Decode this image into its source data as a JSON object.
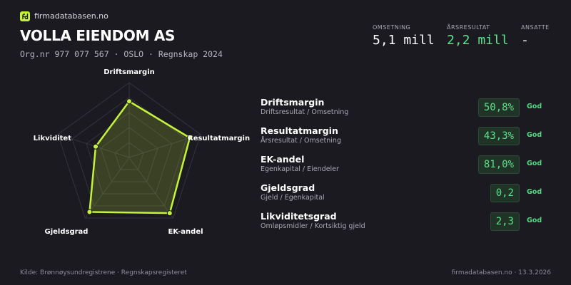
{
  "header": {
    "site": "firmadatabasen.no",
    "company": "VOLLA EIENDOM AS",
    "subtitle": "Org.nr 977 077 567  ·  OSLO  ·  Regnskap 2024"
  },
  "stats": [
    {
      "label": "OMSETNING",
      "value": "5,1 mill"
    },
    {
      "label": "ÅRSRESULTAT",
      "value": "2,2 mill"
    },
    {
      "label": "ANSATTE",
      "value": "-"
    }
  ],
  "chart_data": {
    "type": "radar",
    "categories": [
      "Driftsmargin",
      "Resultatmargin",
      "EK-andel",
      "Gjeldsgrad",
      "Likviditet"
    ],
    "values": [
      75,
      85,
      92,
      90,
      47
    ],
    "rlim": [
      0,
      100
    ],
    "rticks": [
      20,
      40,
      60,
      80,
      100
    ],
    "grid": true,
    "color": "#c5f23a"
  },
  "metrics": [
    {
      "name": "Driftsmargin",
      "formula": "Driftsresultat / Omsetning",
      "value": "50,8%",
      "rating": "God"
    },
    {
      "name": "Resultatmargin",
      "formula": "Årsresultat / Omsetning",
      "value": "43,3%",
      "rating": "God"
    },
    {
      "name": "EK-andel",
      "formula": "Egenkapital / Eiendeler",
      "value": "81,0%",
      "rating": "God"
    },
    {
      "name": "Gjeldsgrad",
      "formula": "Gjeld / Egenkapital",
      "value": "0,2",
      "rating": "God"
    },
    {
      "name": "Likviditetsgrad",
      "formula": "Omløpsmidler / Kortsiktig gjeld",
      "value": "2,3",
      "rating": "God"
    }
  ],
  "footer": {
    "source": "Kilde: Brønnøysundregistrene · Regnskapsregisteret",
    "stamp": "firmadatabasen.no · 13.3.2026"
  }
}
